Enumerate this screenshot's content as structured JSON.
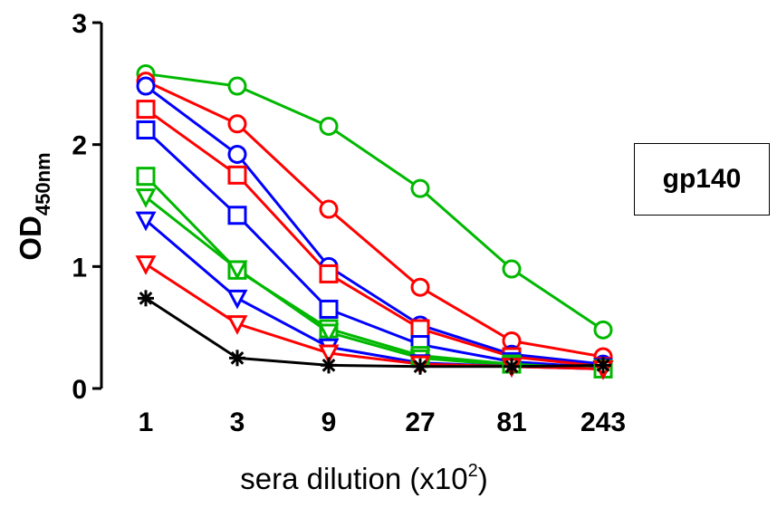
{
  "chart_data": {
    "type": "line",
    "xlabel_main": "sera dilution (x10",
    "xlabel_sup": "2",
    "xlabel_close": ")",
    "ylabel_main": "OD",
    "ylabel_sub": "450nm",
    "categories": [
      "1",
      "3",
      "9",
      "27",
      "81",
      "243"
    ],
    "y_ticks": [
      "0",
      "1",
      "2",
      "3"
    ],
    "ylim": [
      0,
      3
    ],
    "grid": false,
    "annotation": "gp140",
    "series": [
      {
        "color": "#00b800",
        "marker": "circle",
        "values": [
          2.58,
          2.48,
          2.15,
          1.64,
          0.98,
          0.48
        ]
      },
      {
        "color": "#ff0000",
        "marker": "circle",
        "values": [
          2.52,
          2.17,
          1.47,
          0.83,
          0.39,
          0.26
        ]
      },
      {
        "color": "#0000ff",
        "marker": "circle",
        "values": [
          2.48,
          1.92,
          1.0,
          0.52,
          0.28,
          0.2
        ]
      },
      {
        "color": "#ff0000",
        "marker": "square",
        "values": [
          2.29,
          1.75,
          0.94,
          0.49,
          0.26,
          0.18
        ]
      },
      {
        "color": "#0000ff",
        "marker": "square",
        "values": [
          2.12,
          1.42,
          0.65,
          0.36,
          0.22,
          0.17
        ]
      },
      {
        "color": "#00b800",
        "marker": "square",
        "values": [
          1.74,
          0.97,
          0.49,
          0.27,
          0.2,
          0.16
        ]
      },
      {
        "color": "#00b800",
        "marker": "triangle-down",
        "values": [
          1.57,
          0.98,
          0.46,
          0.25,
          0.19,
          0.16
        ]
      },
      {
        "color": "#0000ff",
        "marker": "triangle-down",
        "values": [
          1.38,
          0.74,
          0.34,
          0.21,
          0.18,
          0.16
        ]
      },
      {
        "color": "#ff0000",
        "marker": "triangle-down",
        "values": [
          1.02,
          0.53,
          0.29,
          0.2,
          0.18,
          0.16
        ]
      },
      {
        "color": "#000000",
        "marker": "asterisk",
        "values": [
          0.74,
          0.25,
          0.19,
          0.18,
          0.18,
          0.19
        ]
      }
    ]
  }
}
